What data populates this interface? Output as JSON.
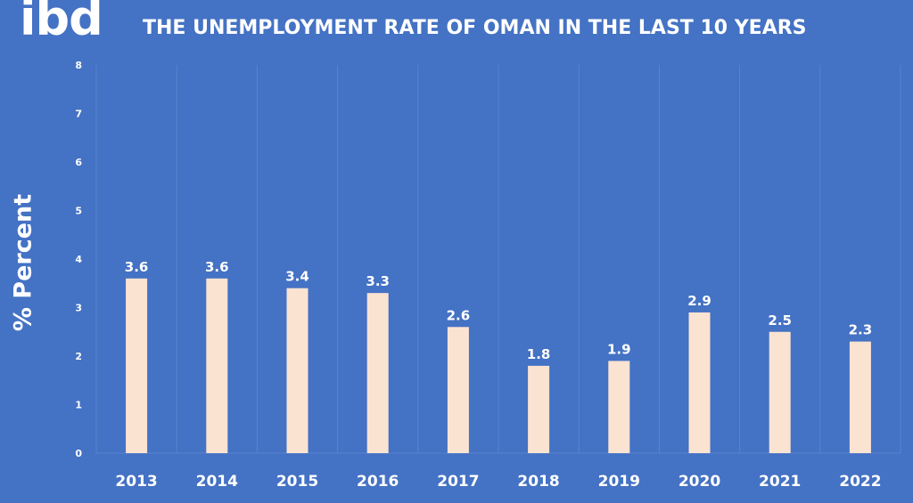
{
  "brand": {
    "logo_text": "ibd"
  },
  "chart_data": {
    "type": "bar",
    "title": "THE UNEMPLOYMENT RATE OF OMAN IN THE LAST 10 YEARS",
    "ylabel": "% Percent",
    "xlabel": "",
    "categories": [
      "2013",
      "2014",
      "2015",
      "2016",
      "2017",
      "2018",
      "2019",
      "2020",
      "2021",
      "2022"
    ],
    "values": [
      3.6,
      3.6,
      3.4,
      3.3,
      2.6,
      1.8,
      1.9,
      2.9,
      2.5,
      2.3
    ],
    "data_labels": [
      "3.6",
      "3.6",
      "3.4",
      "3.3",
      "2.6",
      "1.8",
      "1.9",
      "2.9",
      "2.5",
      "2.3"
    ],
    "ylim": [
      0,
      8
    ],
    "yticks": [
      "0",
      "1",
      "2",
      "3",
      "4",
      "5",
      "6",
      "7",
      "8"
    ],
    "grid": "vertical category separators",
    "legend": "none",
    "colors": {
      "background": "#4472c4",
      "bar": "#fbe3d2",
      "grid": "#5a83cc",
      "text": "#ffffff"
    }
  }
}
